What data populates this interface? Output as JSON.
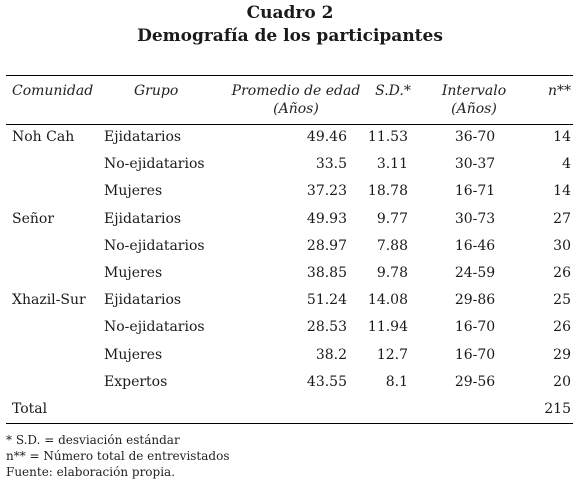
{
  "caption": {
    "number": "Cuadro 2",
    "title": "Demografía de los participantes"
  },
  "headers": {
    "comunidad": "Comunidad",
    "grupo": "Grupo",
    "promedio": "Promedio de edad",
    "promedio_unit": "(Años)",
    "sd": "S.D.*",
    "intervalo": "Intervalo",
    "intervalo_unit": "(Años)",
    "n": "n**"
  },
  "rows": [
    {
      "comunidad": "Noh Cah",
      "grupo": "Ejidatarios",
      "promedio": "49.46",
      "sd": "11.53",
      "intervalo": "36-70",
      "n": "14"
    },
    {
      "comunidad": "",
      "grupo": "No-ejidatarios",
      "promedio": "33.5",
      "sd": "3.11",
      "intervalo": "30-37",
      "n": "4"
    },
    {
      "comunidad": "",
      "grupo": "Mujeres",
      "promedio": "37.23",
      "sd": "18.78",
      "intervalo": "16-71",
      "n": "14"
    },
    {
      "comunidad": "Señor",
      "grupo": "Ejidatarios",
      "promedio": "49.93",
      "sd": "9.77",
      "intervalo": "30-73",
      "n": "27"
    },
    {
      "comunidad": "",
      "grupo": "No-ejidatarios",
      "promedio": "28.97",
      "sd": "7.88",
      "intervalo": "16-46",
      "n": "30"
    },
    {
      "comunidad": "",
      "grupo": "Mujeres",
      "promedio": "38.85",
      "sd": "9.78",
      "intervalo": "24-59",
      "n": "26"
    },
    {
      "comunidad": "Xhazil-Sur",
      "grupo": "Ejidatarios",
      "promedio": "51.24",
      "sd": "14.08",
      "intervalo": "29-86",
      "n": "25"
    },
    {
      "comunidad": "",
      "grupo": "No-ejidatarios",
      "promedio": "28.53",
      "sd": "11.94",
      "intervalo": "16-70",
      "n": "26"
    },
    {
      "comunidad": "",
      "grupo": "Mujeres",
      "promedio": "38.2",
      "sd": "12.7",
      "intervalo": "16-70",
      "n": "29"
    },
    {
      "comunidad": "",
      "grupo": "Expertos",
      "promedio": "43.55",
      "sd": "8.1",
      "intervalo": "29-56",
      "n": "20"
    }
  ],
  "total": {
    "label": "Total",
    "n": "215"
  },
  "notes": [
    "* S.D. = desviación estándar",
    "n** = Número total de entrevistados",
    "Fuente: elaboración propia."
  ]
}
